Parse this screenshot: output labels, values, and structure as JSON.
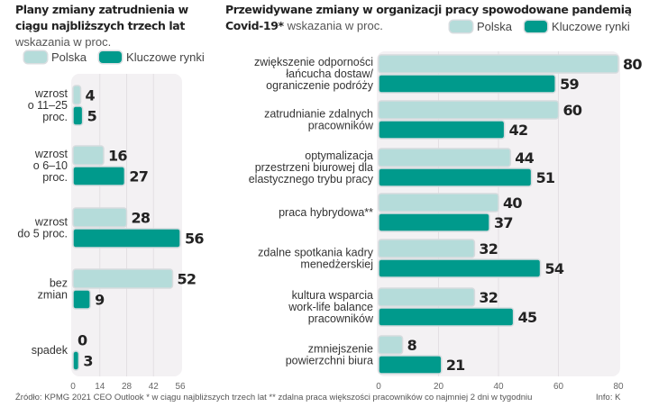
{
  "colors": {
    "polska": "#b5dcda",
    "kluczowe": "#009a8c",
    "plot_bg": "#f3f1f3",
    "grid": "#e3dfe3"
  },
  "legend": {
    "polska": "Polska",
    "kluczowe": "Kluczowe rynki"
  },
  "footer": {
    "source": "Źródło: KPMG 2021 CEO Outlook  * w ciągu najbliższych trzech lat ** zdalna praca większości pracowników co najmniej 2 dni w tygodniu",
    "info": "Info: K"
  },
  "chart_data": [
    {
      "type": "bar",
      "orientation": "horizontal",
      "title": "Plany zmiany zatrudnienia w ciągu najbliższych trzech lat",
      "subtitle": "wskazania w proc.",
      "categories": [
        [
          "wzrost",
          "o 11–25",
          "proc."
        ],
        [
          "wzrost",
          "o 6–10",
          "proc."
        ],
        [
          "wzrost",
          "do 5 proc."
        ],
        [
          "bez",
          "zmian"
        ],
        [
          "spadek"
        ]
      ],
      "series": [
        {
          "name": "Polska",
          "values": [
            4,
            16,
            28,
            52,
            0
          ]
        },
        {
          "name": "Kluczowe rynki",
          "values": [
            5,
            27,
            56,
            9,
            3
          ]
        }
      ],
      "xlim": [
        0,
        56
      ],
      "xticks": [
        "0",
        "14",
        "28",
        "42",
        "56"
      ],
      "grid": true,
      "legend": "top"
    },
    {
      "type": "bar",
      "orientation": "horizontal",
      "title": "Przewidywane zmiany w organizacji pracy spowodowane pandemią Covid-19*",
      "title_line1": "Przewidywane zmiany w organizacji pracy spowodowane pandemią",
      "title_line2": "Covid-19*",
      "subtitle": "wskazania w proc.",
      "categories": [
        [
          "zwiększenie odporności",
          "łańcucha dostaw/",
          "ograniczenie podróży"
        ],
        [
          "zatrudnianie zdalnych",
          "pracowników"
        ],
        [
          "optymalizacja",
          "przestrzeni biurowej dla",
          "elastycznego trybu pracy"
        ],
        [
          "praca hybrydowa**"
        ],
        [
          "zdalne spotkania kadry",
          "menedżerskiej"
        ],
        [
          "kultura wsparcia",
          "work-life balance",
          "pracowników"
        ],
        [
          "zmniejszenie",
          "powierzchni biura"
        ]
      ],
      "series": [
        {
          "name": "Polska",
          "values": [
            80,
            60,
            44,
            40,
            32,
            32,
            8
          ]
        },
        {
          "name": "Kluczowe rynki",
          "values": [
            59,
            42,
            51,
            37,
            54,
            45,
            21
          ]
        }
      ],
      "xlim": [
        0,
        80
      ],
      "xticks": [
        "0",
        "20",
        "40",
        "60",
        "80"
      ],
      "grid": true,
      "legend": "top-right"
    }
  ]
}
